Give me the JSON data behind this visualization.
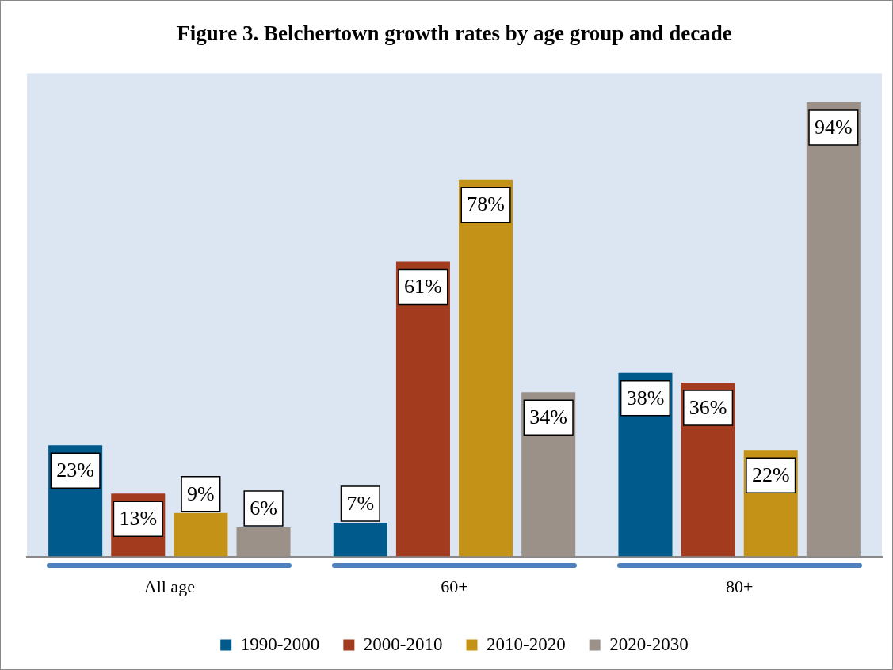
{
  "chart_data": {
    "type": "bar",
    "title": "Figure 3. Belchertown growth rates by age group and decade",
    "categories": [
      "All age",
      "60+",
      "80+"
    ],
    "ylim": [
      0,
      100
    ],
    "legend": "bottom",
    "series": [
      {
        "name": "1990-2000",
        "color": "#005a8c",
        "values": [
          23,
          7,
          38
        ],
        "value_labels": [
          "23%",
          "7%",
          "38%"
        ]
      },
      {
        "name": "2000-2010",
        "color": "#a33c1e",
        "values": [
          13,
          61,
          36
        ],
        "value_labels": [
          "13%",
          "61%",
          "36%"
        ]
      },
      {
        "name": "2010-2020",
        "color": "#c59218",
        "values": [
          9,
          78,
          22
        ],
        "value_labels": [
          "9%",
          "78%",
          "22%"
        ]
      },
      {
        "name": "2020-2030",
        "color": "#9b9188",
        "values": [
          6,
          34,
          94
        ],
        "value_labels": [
          "6%",
          "34%",
          "94%"
        ]
      }
    ]
  }
}
